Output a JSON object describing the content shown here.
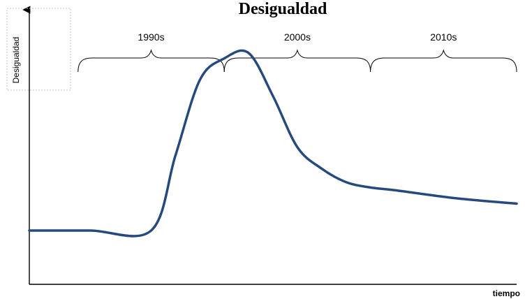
{
  "chart_data": {
    "type": "line",
    "title": "Desigualdad",
    "xlabel": "tiempo",
    "ylabel": "Desigualdad",
    "grid": false,
    "legend": "none",
    "x": [
      1980,
      1985,
      1990,
      1992,
      1994,
      1996,
      1998,
      2000,
      2002,
      2004,
      2006,
      2008,
      2010,
      2015,
      2020
    ],
    "series": [
      {
        "values": [
          20,
          20,
          20,
          48,
          76,
          84,
          86,
          70,
          51,
          43,
          38,
          36,
          35,
          32,
          30
        ],
        "color": "#264a7e"
      }
    ],
    "xlim": [
      1980,
      2020
    ],
    "ylim": [
      0,
      100
    ],
    "periods": [
      {
        "label": "1990s",
        "start": 1984,
        "end": 1996
      },
      {
        "label": "2000s",
        "start": 1996,
        "end": 2008
      },
      {
        "label": "2010s",
        "start": 2008,
        "end": 2020
      }
    ]
  }
}
